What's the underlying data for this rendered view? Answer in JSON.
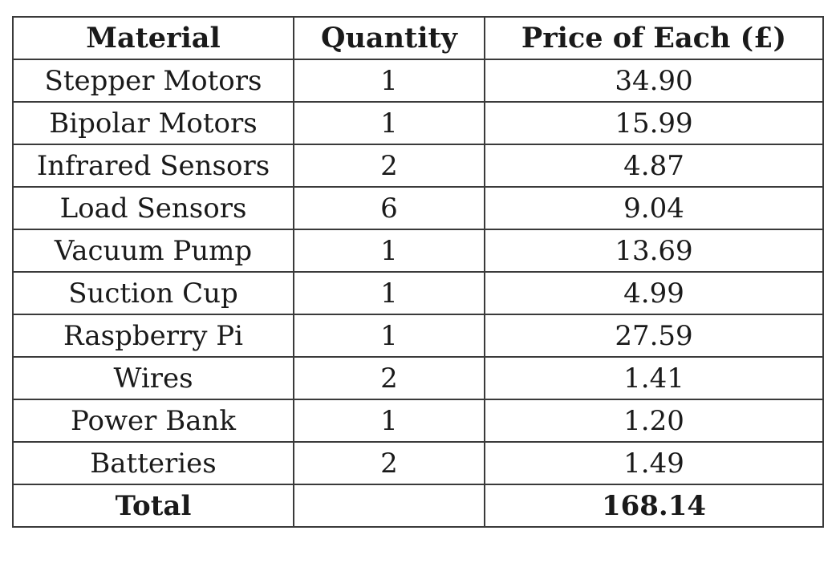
{
  "table": {
    "headers": [
      "Material",
      "Quantity",
      "Price of Each (£)"
    ],
    "rows": [
      {
        "material": "Stepper Motors",
        "quantity": "1",
        "price": "34.90"
      },
      {
        "material": "Bipolar Motors",
        "quantity": "1",
        "price": "15.99"
      },
      {
        "material": "Infrared Sensors",
        "quantity": "2",
        "price": "4.87"
      },
      {
        "material": "Load Sensors",
        "quantity": "6",
        "price": "9.04"
      },
      {
        "material": "Vacuum Pump",
        "quantity": "1",
        "price": "13.69"
      },
      {
        "material": "Suction Cup",
        "quantity": "1",
        "price": "4.99"
      },
      {
        "material": "Raspberry Pi",
        "quantity": "1",
        "price": "27.59"
      },
      {
        "material": "Wires",
        "quantity": "2",
        "price": "1.41"
      },
      {
        "material": "Power Bank",
        "quantity": "1",
        "price": "1.20"
      },
      {
        "material": "Batteries",
        "quantity": "2",
        "price": "1.49"
      }
    ],
    "total": {
      "label": "Total",
      "quantity": "",
      "price": "168.14"
    }
  }
}
